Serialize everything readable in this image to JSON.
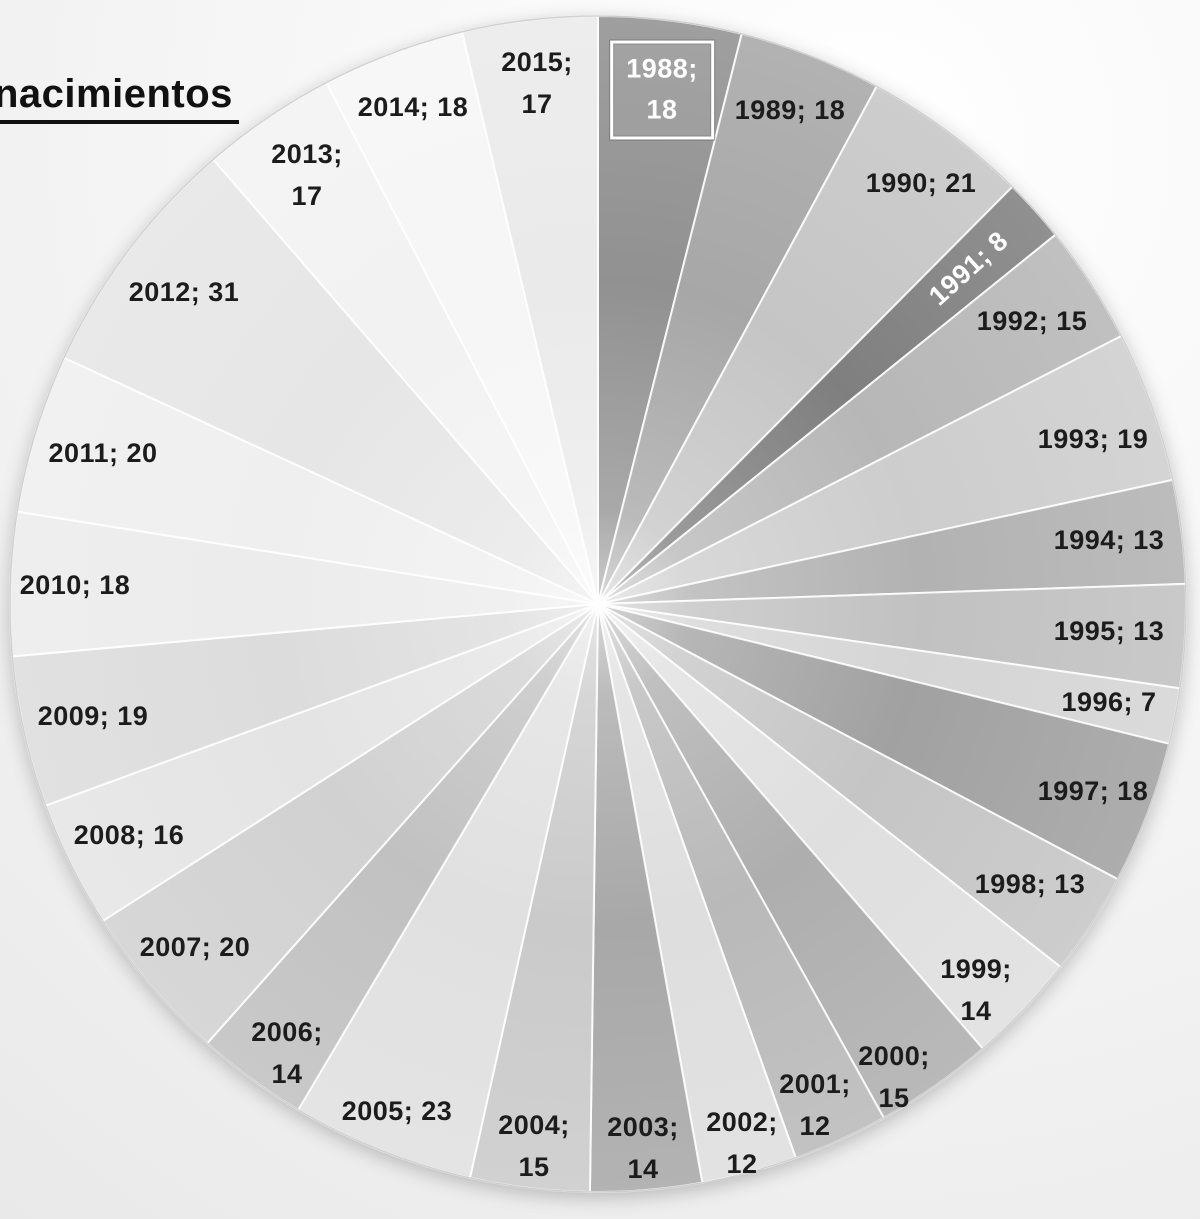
{
  "title": "nacimientos",
  "chart_data": {
    "type": "pie",
    "title": "nacimientos",
    "legend": "none",
    "start_angle_deg": 0,
    "direction": "clockwise",
    "label_format": "year; value",
    "total": 458,
    "categories": [
      "1988",
      "1989",
      "1990",
      "1991",
      "1992",
      "1993",
      "1994",
      "1995",
      "1996",
      "1997",
      "1998",
      "1999",
      "2000",
      "2001",
      "2002",
      "2003",
      "2004",
      "2005",
      "2006",
      "2007",
      "2008",
      "2009",
      "2010",
      "2011",
      "2012",
      "2013",
      "2014",
      "2015"
    ],
    "values": [
      18,
      18,
      21,
      8,
      15,
      19,
      13,
      13,
      7,
      18,
      13,
      14,
      15,
      12,
      12,
      14,
      15,
      23,
      14,
      20,
      16,
      19,
      18,
      20,
      31,
      17,
      18,
      17
    ],
    "slices": [
      {
        "year": "1988",
        "value": 18,
        "label": "1988; 18",
        "label_lines": [
          "1988;",
          "18"
        ],
        "color": "#919191",
        "label_color": "#ffffff",
        "boxed": true
      },
      {
        "year": "1989",
        "value": 18,
        "label": "1989; 18",
        "label_lines": [
          "1989; 18"
        ],
        "color": "#a7a7a7",
        "label_color": "#1c1c1c",
        "boxed": false
      },
      {
        "year": "1990",
        "value": 21,
        "label": "1990; 21",
        "label_lines": [
          "1990; 21"
        ],
        "color": "#c5c5c5",
        "label_color": "#1c1c1c",
        "boxed": false
      },
      {
        "year": "1991",
        "value": 8,
        "label": "1991; 8",
        "label_lines": [
          "1991; 8"
        ],
        "color": "#7f7f7f",
        "label_color": "#ffffff",
        "boxed": false
      },
      {
        "year": "1992",
        "value": 15,
        "label": "1992; 15",
        "label_lines": [
          "1992; 15"
        ],
        "color": "#b7b7b7",
        "label_color": "#1c1c1c",
        "boxed": false
      },
      {
        "year": "1993",
        "value": 19,
        "label": "1993; 19",
        "label_lines": [
          "1993; 19"
        ],
        "color": "#cdcdcd",
        "label_color": "#1c1c1c",
        "boxed": false
      },
      {
        "year": "1994",
        "value": 13,
        "label": "1994; 13",
        "label_lines": [
          "1994; 13"
        ],
        "color": "#b2b2b2",
        "label_color": "#1c1c1c",
        "boxed": false
      },
      {
        "year": "1995",
        "value": 13,
        "label": "1995; 13",
        "label_lines": [
          "1995; 13"
        ],
        "color": "#c1c1c1",
        "label_color": "#1c1c1c",
        "boxed": false
      },
      {
        "year": "1996",
        "value": 7,
        "label": "1996; 7",
        "label_lines": [
          "1996; 7"
        ],
        "color": "#d5d5d5",
        "label_color": "#1c1c1c",
        "boxed": false
      },
      {
        "year": "1997",
        "value": 18,
        "label": "1997; 18",
        "label_lines": [
          "1997; 18"
        ],
        "color": "#a1a1a1",
        "label_color": "#1c1c1c",
        "boxed": false
      },
      {
        "year": "1998",
        "value": 13,
        "label": "1998; 13",
        "label_lines": [
          "1998; 13"
        ],
        "color": "#c5c5c5",
        "label_color": "#1c1c1c",
        "boxed": false
      },
      {
        "year": "1999",
        "value": 14,
        "label": "1999; 14",
        "label_lines": [
          "1999;",
          "14"
        ],
        "color": "#dfdfdf",
        "label_color": "#1c1c1c",
        "boxed": false
      },
      {
        "year": "2000",
        "value": 15,
        "label": "2000; 15",
        "label_lines": [
          "2000;",
          "15"
        ],
        "color": "#aeaeae",
        "label_color": "#1c1c1c",
        "boxed": false
      },
      {
        "year": "2001",
        "value": 12,
        "label": "2001; 12",
        "label_lines": [
          "2001;",
          "12"
        ],
        "color": "#b9b9b9",
        "label_color": "#1c1c1c",
        "boxed": false
      },
      {
        "year": "2002",
        "value": 12,
        "label": "2002; 12",
        "label_lines": [
          "2002;",
          "12"
        ],
        "color": "#dedede",
        "label_color": "#1c1c1c",
        "boxed": false
      },
      {
        "year": "2003",
        "value": 14,
        "label": "2003; 14",
        "label_lines": [
          "2003;",
          "14"
        ],
        "color": "#a8a8a8",
        "label_color": "#1c1c1c",
        "boxed": false
      },
      {
        "year": "2004",
        "value": 15,
        "label": "2004; 15",
        "label_lines": [
          "2004;",
          "15"
        ],
        "color": "#cacaca",
        "label_color": "#1c1c1c",
        "boxed": false
      },
      {
        "year": "2005",
        "value": 23,
        "label": "2005; 23",
        "label_lines": [
          "2005; 23"
        ],
        "color": "#e0e0e0",
        "label_color": "#1c1c1c",
        "boxed": false
      },
      {
        "year": "2006",
        "value": 14,
        "label": "2006; 14",
        "label_lines": [
          "2006;",
          "14"
        ],
        "color": "#c1c1c1",
        "label_color": "#1c1c1c",
        "boxed": false
      },
      {
        "year": "2007",
        "value": 20,
        "label": "2007; 20",
        "label_lines": [
          "2007; 20"
        ],
        "color": "#d1d1d1",
        "label_color": "#1c1c1c",
        "boxed": false
      },
      {
        "year": "2008",
        "value": 16,
        "label": "2008; 16",
        "label_lines": [
          "2008; 16"
        ],
        "color": "#e4e4e4",
        "label_color": "#1c1c1c",
        "boxed": false
      },
      {
        "year": "2009",
        "value": 19,
        "label": "2009; 19",
        "label_lines": [
          "2009; 19"
        ],
        "color": "#dcdcdc",
        "label_color": "#1c1c1c",
        "boxed": false
      },
      {
        "year": "2010",
        "value": 18,
        "label": "2010; 18",
        "label_lines": [
          "2010; 18"
        ],
        "color": "#ececec",
        "label_color": "#1c1c1c",
        "boxed": false
      },
      {
        "year": "2011",
        "value": 20,
        "label": "2011; 20",
        "label_lines": [
          "2011; 20"
        ],
        "color": "#efefef",
        "label_color": "#1c1c1c",
        "boxed": false
      },
      {
        "year": "2012",
        "value": 31,
        "label": "2012; 31",
        "label_lines": [
          "2012; 31"
        ],
        "color": "#e6e6e6",
        "label_color": "#1c1c1c",
        "boxed": false
      },
      {
        "year": "2013",
        "value": 17,
        "label": "2013; 17",
        "label_lines": [
          "2013;",
          "17"
        ],
        "color": "#f2f2f2",
        "label_color": "#1c1c1c",
        "boxed": false
      },
      {
        "year": "2014",
        "value": 18,
        "label": "2014; 18",
        "label_lines": [
          "2014; 18"
        ],
        "color": "#f6f6f6",
        "label_color": "#1c1c1c",
        "boxed": false
      },
      {
        "year": "2015",
        "value": 17,
        "label": "2015; 17",
        "label_lines": [
          "2015;",
          "17"
        ],
        "color": "#eaeaea",
        "label_color": "#1c1c1c",
        "boxed": false
      }
    ],
    "separator_color": "#ffffff",
    "rim_color": "#9c9c9c"
  }
}
